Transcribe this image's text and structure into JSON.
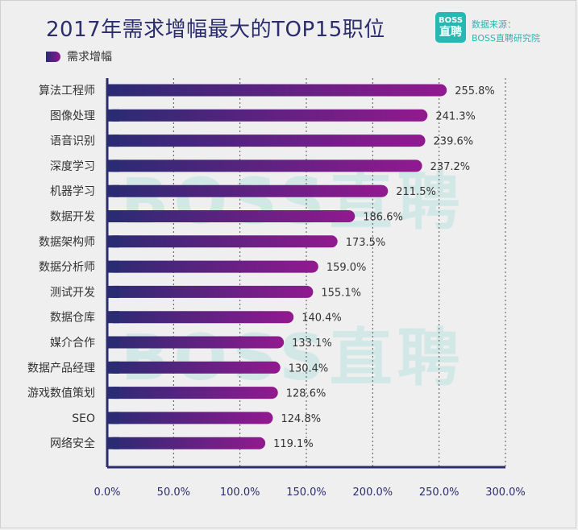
{
  "header": {
    "title": "2017年需求增幅最大的TOP15职位",
    "logo_top": "BOSS",
    "logo_bottom": "直聘",
    "source_line1": "数据来源：",
    "source_line2": "BOSS直聘研究院",
    "watermark": "BOSS直聘"
  },
  "colors": {
    "bar_start": "#2a2b72",
    "bar_end": "#92198f",
    "axis": "#2b2d6e",
    "brand": "#27b8b3"
  },
  "chart_data": {
    "type": "bar",
    "orientation": "horizontal",
    "title": "2017年需求增幅最大的TOP15职位",
    "legend": [
      "需求增幅"
    ],
    "legend_position": "top-left",
    "categories": [
      "算法工程师",
      "图像处理",
      "语音识别",
      "深度学习",
      "机器学习",
      "数据开发",
      "数据架构师",
      "数据分析师",
      "测试开发",
      "数据仓库",
      "媒介合作",
      "数据产品经理",
      "游戏数值策划",
      "SEO",
      "网络安全"
    ],
    "series": [
      {
        "name": "需求增幅",
        "values": [
          255.8,
          241.3,
          239.6,
          237.2,
          211.5,
          186.6,
          173.5,
          159.0,
          155.1,
          140.4,
          133.1,
          130.4,
          128.6,
          124.8,
          119.1
        ],
        "value_labels": [
          "255.8%",
          "241.3%",
          "239.6%",
          "237.2%",
          "211.5%",
          "186.6%",
          "173.5%",
          "159.0%",
          "155.1%",
          "140.4%",
          "133.1%",
          "130.4%",
          "128.6%",
          "124.8%",
          "119.1%"
        ]
      }
    ],
    "xlim": [
      0,
      300
    ],
    "x_ticks": [
      0,
      50,
      100,
      150,
      200,
      250,
      300
    ],
    "x_tick_labels": [
      "0.0%",
      "50.0%",
      "100.0%",
      "150.0%",
      "200.0%",
      "250.0%",
      "300.0%"
    ],
    "grid": "vertical dashed"
  }
}
